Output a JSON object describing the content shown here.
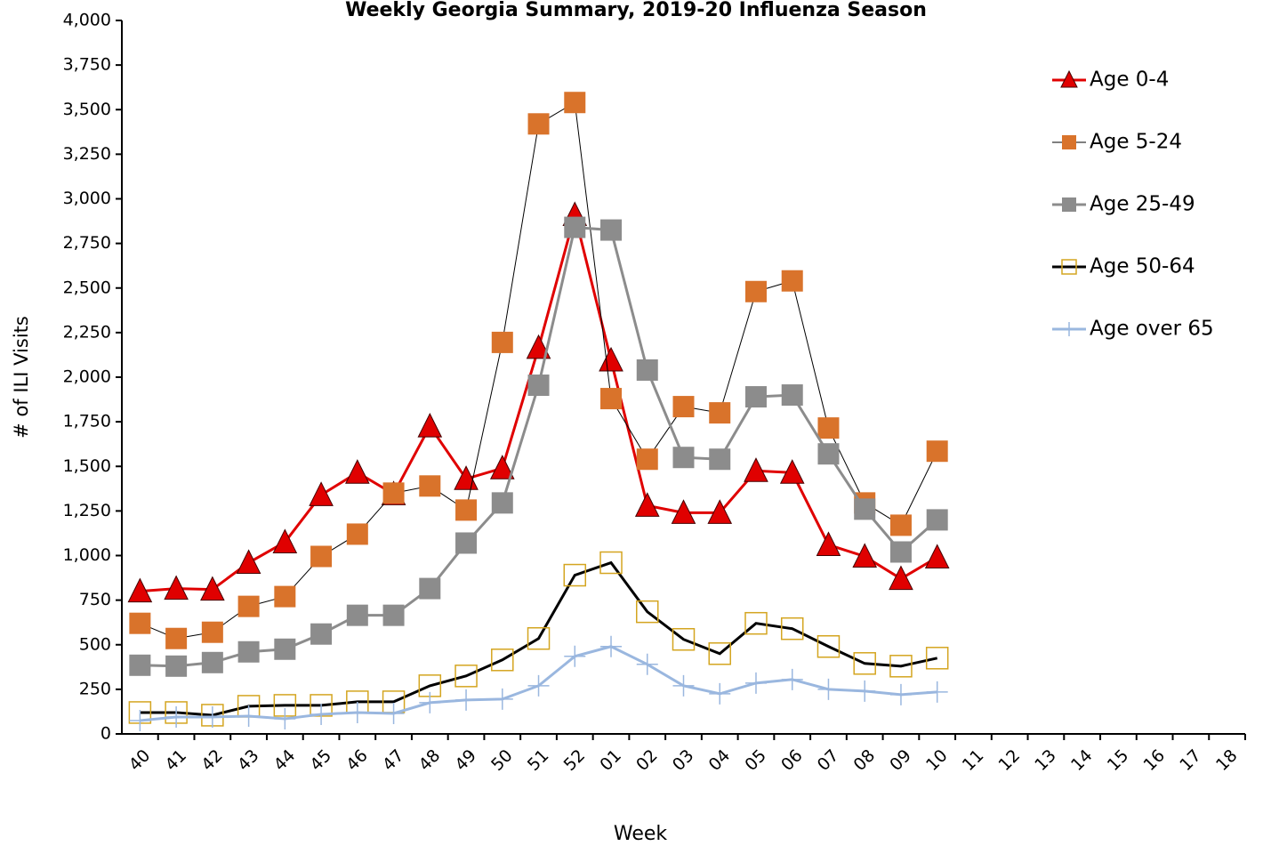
{
  "chart_data": {
    "type": "line",
    "title": "Weekly Georgia Summary, 2019-20 Influenza Season",
    "x_label": "Week",
    "y_label": "# of ILI Visits",
    "categories": [
      "40",
      "41",
      "42",
      "43",
      "44",
      "45",
      "46",
      "47",
      "48",
      "49",
      "50",
      "51",
      "52",
      "01",
      "02",
      "03",
      "04",
      "05",
      "06",
      "07",
      "08",
      "09",
      "10",
      "11",
      "12",
      "13",
      "14",
      "15",
      "16",
      "17",
      "18"
    ],
    "ylim": [
      0,
      4000
    ],
    "yticks": [
      0,
      250,
      500,
      750,
      {
        "value": 1000,
        "label": "1,000"
      },
      {
        "value": 1250,
        "label": "1,250"
      },
      {
        "value": 1500,
        "label": "1,500"
      },
      {
        "value": 1750,
        "label": "1,750"
      },
      {
        "value": 2000,
        "label": "2,000"
      },
      {
        "value": 2250,
        "label": "2,250"
      },
      {
        "value": 2500,
        "label": "2,500"
      },
      {
        "value": 2750,
        "label": "2,750"
      },
      {
        "value": 3000,
        "label": "3,000"
      },
      {
        "value": 3250,
        "label": "3,250"
      },
      {
        "value": 3500,
        "label": "3,500"
      },
      {
        "value": 3750,
        "label": "3,750"
      },
      {
        "value": 4000,
        "label": "4,000"
      }
    ],
    "grid": false,
    "legend": "right",
    "series": [
      {
        "name": "Age 0-4",
        "color": "#e00000",
        "line_color": "#e00000",
        "line_width": 3,
        "marker": "triangle",
        "values": [
          800,
          815,
          810,
          960,
          1075,
          1340,
          1465,
          1345,
          1725,
          1430,
          1490,
          2165,
          2910,
          2095,
          1280,
          1240,
          1240,
          1475,
          1465,
          1060,
          995,
          870,
          990,
          null,
          null,
          null,
          null,
          null,
          null,
          null,
          null
        ]
      },
      {
        "name": "Age 5-24",
        "color": "#d9732b",
        "line_color": "#000000",
        "line_width": 1,
        "marker": "square",
        "values": [
          620,
          535,
          570,
          715,
          770,
          995,
          1120,
          1350,
          1390,
          1255,
          2195,
          3420,
          3540,
          1880,
          1540,
          1835,
          1800,
          2480,
          2540,
          1715,
          1295,
          1170,
          1585,
          null,
          null,
          null,
          null,
          null,
          null,
          null,
          null
        ]
      },
      {
        "name": "Age 25-49",
        "color": "#8c8c8c",
        "line_color": "#8c8c8c",
        "line_width": 3,
        "marker": "square",
        "values": [
          385,
          380,
          400,
          460,
          475,
          560,
          665,
          665,
          815,
          1070,
          1295,
          1955,
          2840,
          2825,
          2040,
          1550,
          1540,
          1890,
          1900,
          1570,
          1260,
          1020,
          1200,
          null,
          null,
          null,
          null,
          null,
          null,
          null,
          null
        ]
      },
      {
        "name": "Age 50-64",
        "color": "#d4a520",
        "line_color": "#000000",
        "line_width": 3,
        "marker": "hollow-square",
        "values": [
          120,
          120,
          105,
          155,
          160,
          160,
          180,
          180,
          270,
          325,
          415,
          535,
          890,
          960,
          685,
          530,
          450,
          620,
          590,
          490,
          395,
          380,
          425,
          null,
          null,
          null,
          null,
          null,
          null,
          null,
          null
        ]
      },
      {
        "name": "Age over 65",
        "color": "#9ab7df",
        "line_color": "#9ab7df",
        "line_width": 3,
        "marker": "plus",
        "values": [
          75,
          95,
          95,
          100,
          85,
          110,
          120,
          115,
          175,
          190,
          195,
          270,
          435,
          490,
          390,
          270,
          225,
          285,
          305,
          250,
          240,
          220,
          235,
          null,
          null,
          null,
          null,
          null,
          null,
          null,
          null
        ]
      }
    ]
  }
}
